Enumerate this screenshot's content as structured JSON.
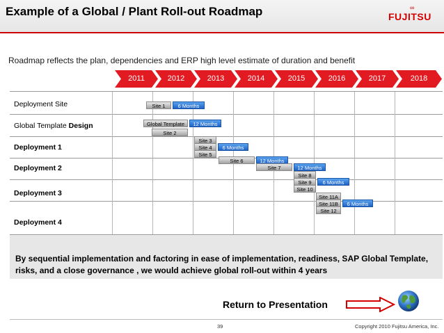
{
  "header": {
    "title": "Example of a Global / Plant Roll-out Roadmap",
    "logo": "FUJITSU",
    "logo_symbol": "∞"
  },
  "subtitle": "Roadmap reflects the plan, dependencies and ERP high level estimate of duration and benefit",
  "years": [
    "2011",
    "2012",
    "2013",
    "2014",
    "2015",
    "2016",
    "2017",
    "2018"
  ],
  "rows": {
    "deployment_site": "Deployment Site",
    "global_template_prefix": "Global Template ",
    "global_template_bold": "Design",
    "deployment_1": "Deployment 1",
    "deployment_2": "Deployment 2",
    "deployment_3": "Deployment 3",
    "deployment_4": "Deployment 4"
  },
  "bars": {
    "site1": "Site 1",
    "site1_dur": "6 Months",
    "global_template": "Global Template",
    "global_template_dur": "12 Months",
    "site2": "Site 2",
    "site3": "Site 3",
    "site4": "Site 4",
    "site4_dur": "6 Months",
    "site5": "Site 5",
    "site6": "Site 6",
    "site6_dur": "12 Months",
    "site7": "Site 7",
    "site7_dur": "12 Months",
    "site8": "Site 8",
    "site9": "Site 9",
    "site9_dur": "6 Months",
    "site10": "Site 10",
    "site11a": "Site 11A",
    "site11b": "Site 11B",
    "site11b_dur": "6 Months",
    "site12": "Site 12"
  },
  "note": "By sequential implementation and factoring in ease of implementation, readiness, SAP Global Template, risks, and a close governance , we would achieve global roll-out within 4 years",
  "return_link": "Return to Presentation",
  "footer": {
    "page": "39",
    "copyright": "Copyright 2010 Fujitsu America, Inc."
  },
  "colors": {
    "accent_red": "#e21a22",
    "bar_blue": "#1f63c8",
    "bar_gray": "#a3a3a3"
  }
}
